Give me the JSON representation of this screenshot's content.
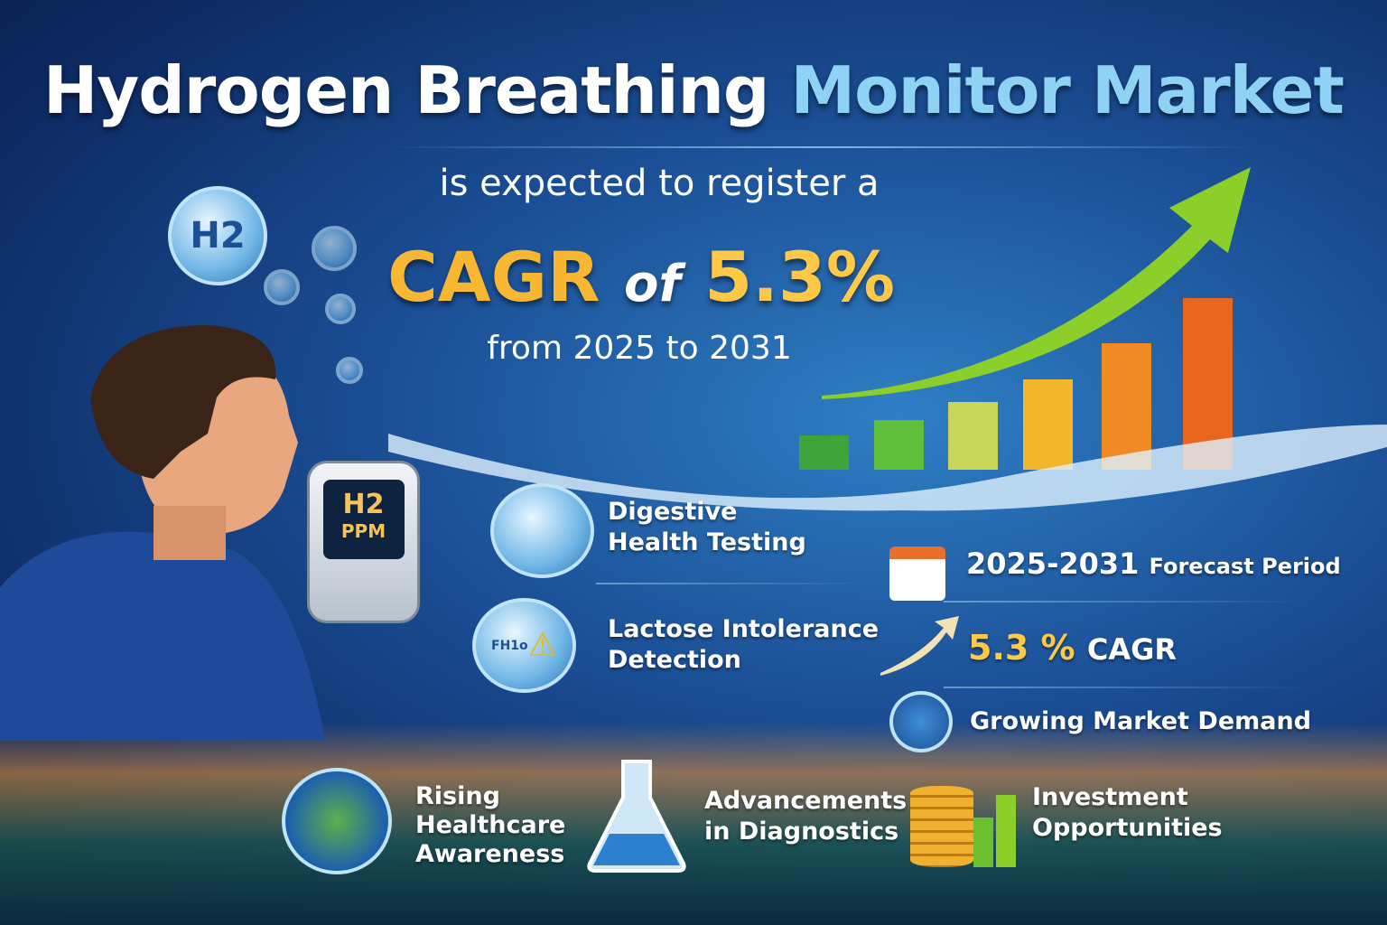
{
  "title": {
    "part1": "Hydrogen Breathing",
    "part2": "Monitor Market"
  },
  "subtitle": "is expected to register a",
  "cagr": {
    "prefix": "CAGR",
    "of": "of",
    "value": "5.3%"
  },
  "range": "from 2025 to 2031",
  "h2_bubble": "H2",
  "device": {
    "screen": "H2",
    "unit": "PPM"
  },
  "features": [
    {
      "label1": "Digestive",
      "label2": "Health Testing",
      "icon": "stomach-magnifier-icon"
    },
    {
      "label1": "Lactose Intolerance",
      "label2": "Detection",
      "icon": "milk-warning-icon",
      "carton_text": "FH1o"
    }
  ],
  "stats": [
    {
      "strong": "2025-2031",
      "rest": "Forecast Period",
      "icon": "calendar-icon"
    },
    {
      "strong": "5.3 %",
      "rest": "CAGR",
      "icon": "trend-arrow-icon"
    },
    {
      "strong": "",
      "rest": "Growing Market Demand",
      "icon": "globe-icon"
    }
  ],
  "bottom": [
    {
      "lines": [
        "Rising",
        "Healthcare",
        "Awareness"
      ],
      "icon": "globe-chart-icon"
    },
    {
      "lines": [
        "Advancements",
        "in Diagnostics"
      ],
      "icon": "flask-icon"
    },
    {
      "lines": [
        "Investment",
        "Opportunities"
      ],
      "icon": "coins-growth-icon"
    }
  ],
  "colors": {
    "accent_blue": "#8fd3f4",
    "accent_orange": "#f7b733",
    "arrow_green": "#8ccf2a"
  }
}
